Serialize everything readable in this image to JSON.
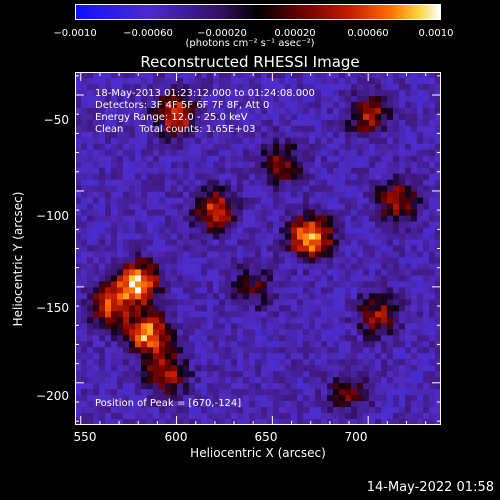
{
  "colorbar": {
    "ticks": [
      "−0.0010",
      "−0.00060",
      "−0.00020",
      "0.00020",
      "0.00060",
      "0.0010"
    ],
    "unit": "(photons cm⁻² s⁻¹ asec⁻²)"
  },
  "chart_data": {
    "type": "heatmap",
    "title": "Reconstructed RHESSI Image",
    "xlabel": "Heliocentric X (arcsec)",
    "ylabel": "Heliocentric Y (arcsec)",
    "xlim": [
      547,
      738
    ],
    "ylim": [
      -222,
      -38
    ],
    "x_ticks": [
      "550",
      "600",
      "650",
      "700"
    ],
    "y_ticks": [
      "−50",
      "−100",
      "−150",
      "−200"
    ],
    "color_range": [
      -0.001,
      0.001
    ],
    "info_lines": [
      "18-May-2013 01:23:12.000 to 01:24:08.000",
      "Detectors: 3F 4F 5F 6F 7F 8F, Att 0",
      "Energy Range: 12.0 - 25.0 keV",
      "Clean     Total counts: 1.65E+03"
    ],
    "peak_label": "Position of Peak = [670,-124]",
    "peak": [
      670,
      -124
    ],
    "sources": [
      {
        "x": 580,
        "y": -148,
        "level": 1.0
      },
      {
        "x": 585,
        "y": -175,
        "level": 0.9
      },
      {
        "x": 565,
        "y": -160,
        "level": 0.7
      },
      {
        "x": 595,
        "y": -195,
        "level": 0.6
      },
      {
        "x": 670,
        "y": -124,
        "level": 1.0
      },
      {
        "x": 620,
        "y": -110,
        "level": 0.7
      },
      {
        "x": 600,
        "y": -60,
        "level": 0.75
      },
      {
        "x": 700,
        "y": -60,
        "level": 0.6
      },
      {
        "x": 715,
        "y": -105,
        "level": 0.6
      },
      {
        "x": 705,
        "y": -165,
        "level": 0.55
      },
      {
        "x": 655,
        "y": -85,
        "level": 0.5
      },
      {
        "x": 640,
        "y": -150,
        "level": 0.4
      },
      {
        "x": 690,
        "y": -205,
        "level": 0.45
      }
    ]
  },
  "footer": {
    "timestamp": "14-May-2022 01:58"
  }
}
